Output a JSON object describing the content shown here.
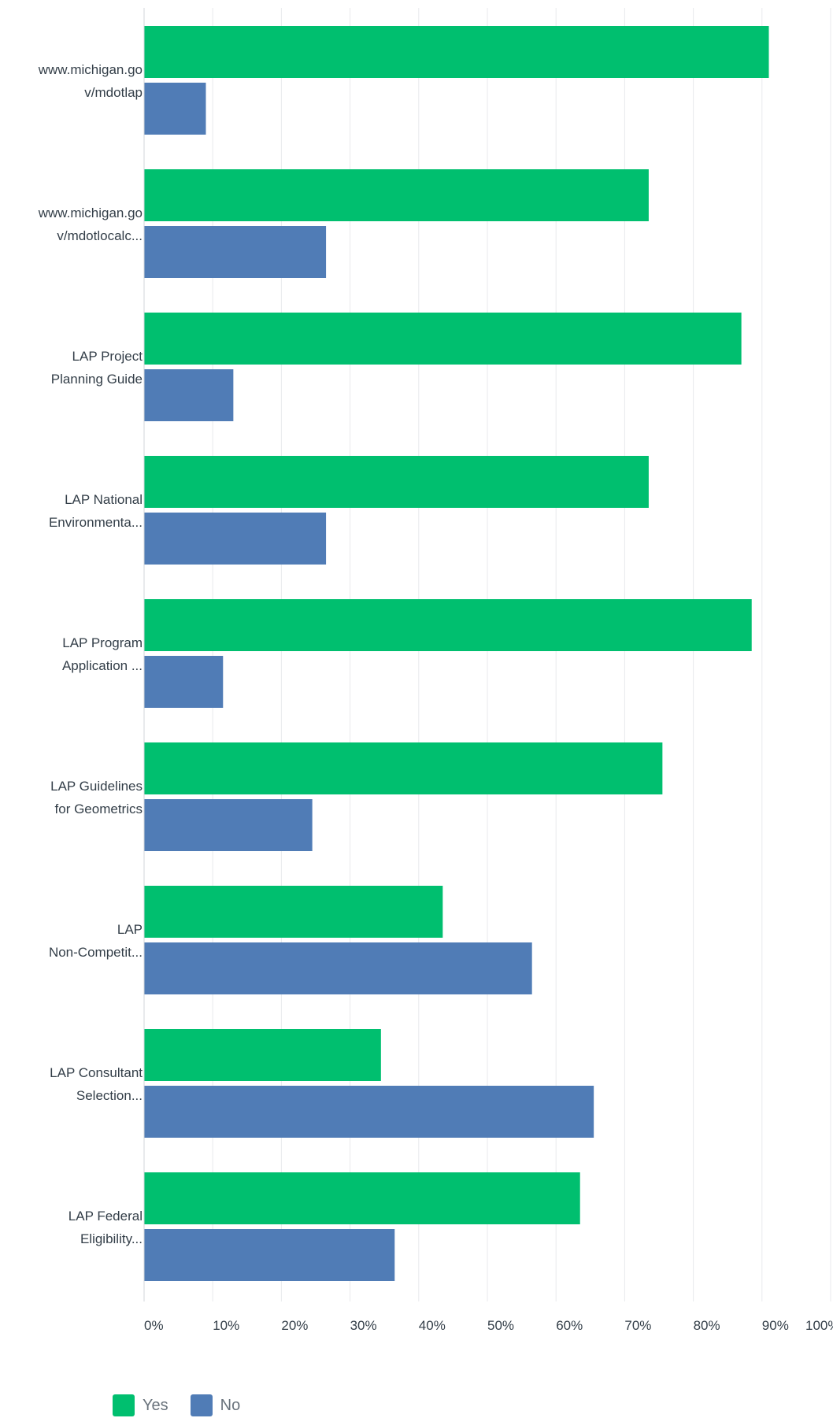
{
  "chart_data": {
    "type": "bar",
    "orientation": "horizontal",
    "categories": [
      [
        "www.michigan.go",
        "v/mdotlap"
      ],
      [
        "www.michigan.go",
        "v/mdotlocalc..."
      ],
      [
        "LAP Project",
        "Planning Guide"
      ],
      [
        "LAP National",
        "Environmenta..."
      ],
      [
        "LAP Program",
        "Application ..."
      ],
      [
        "LAP Guidelines",
        "for Geometrics"
      ],
      [
        "LAP",
        "Non-Competit..."
      ],
      [
        "LAP Consultant",
        "Selection..."
      ],
      [
        "LAP Federal",
        "Eligibility..."
      ]
    ],
    "series": [
      {
        "name": "Yes",
        "color": "#00bf6f",
        "values": [
          91,
          73.5,
          87,
          73.5,
          88.5,
          75.5,
          43.5,
          34.5,
          63.5
        ]
      },
      {
        "name": "No",
        "color": "#507cb6",
        "values": [
          9,
          26.5,
          13,
          26.5,
          11.5,
          24.5,
          56.5,
          65.5,
          36.5
        ]
      }
    ],
    "x_ticks": [
      "0%",
      "10%",
      "20%",
      "30%",
      "40%",
      "50%",
      "60%",
      "70%",
      "80%",
      "90%",
      "100%"
    ],
    "xlim": [
      0,
      100
    ],
    "grid": true,
    "legend_position": "bottom-left"
  }
}
